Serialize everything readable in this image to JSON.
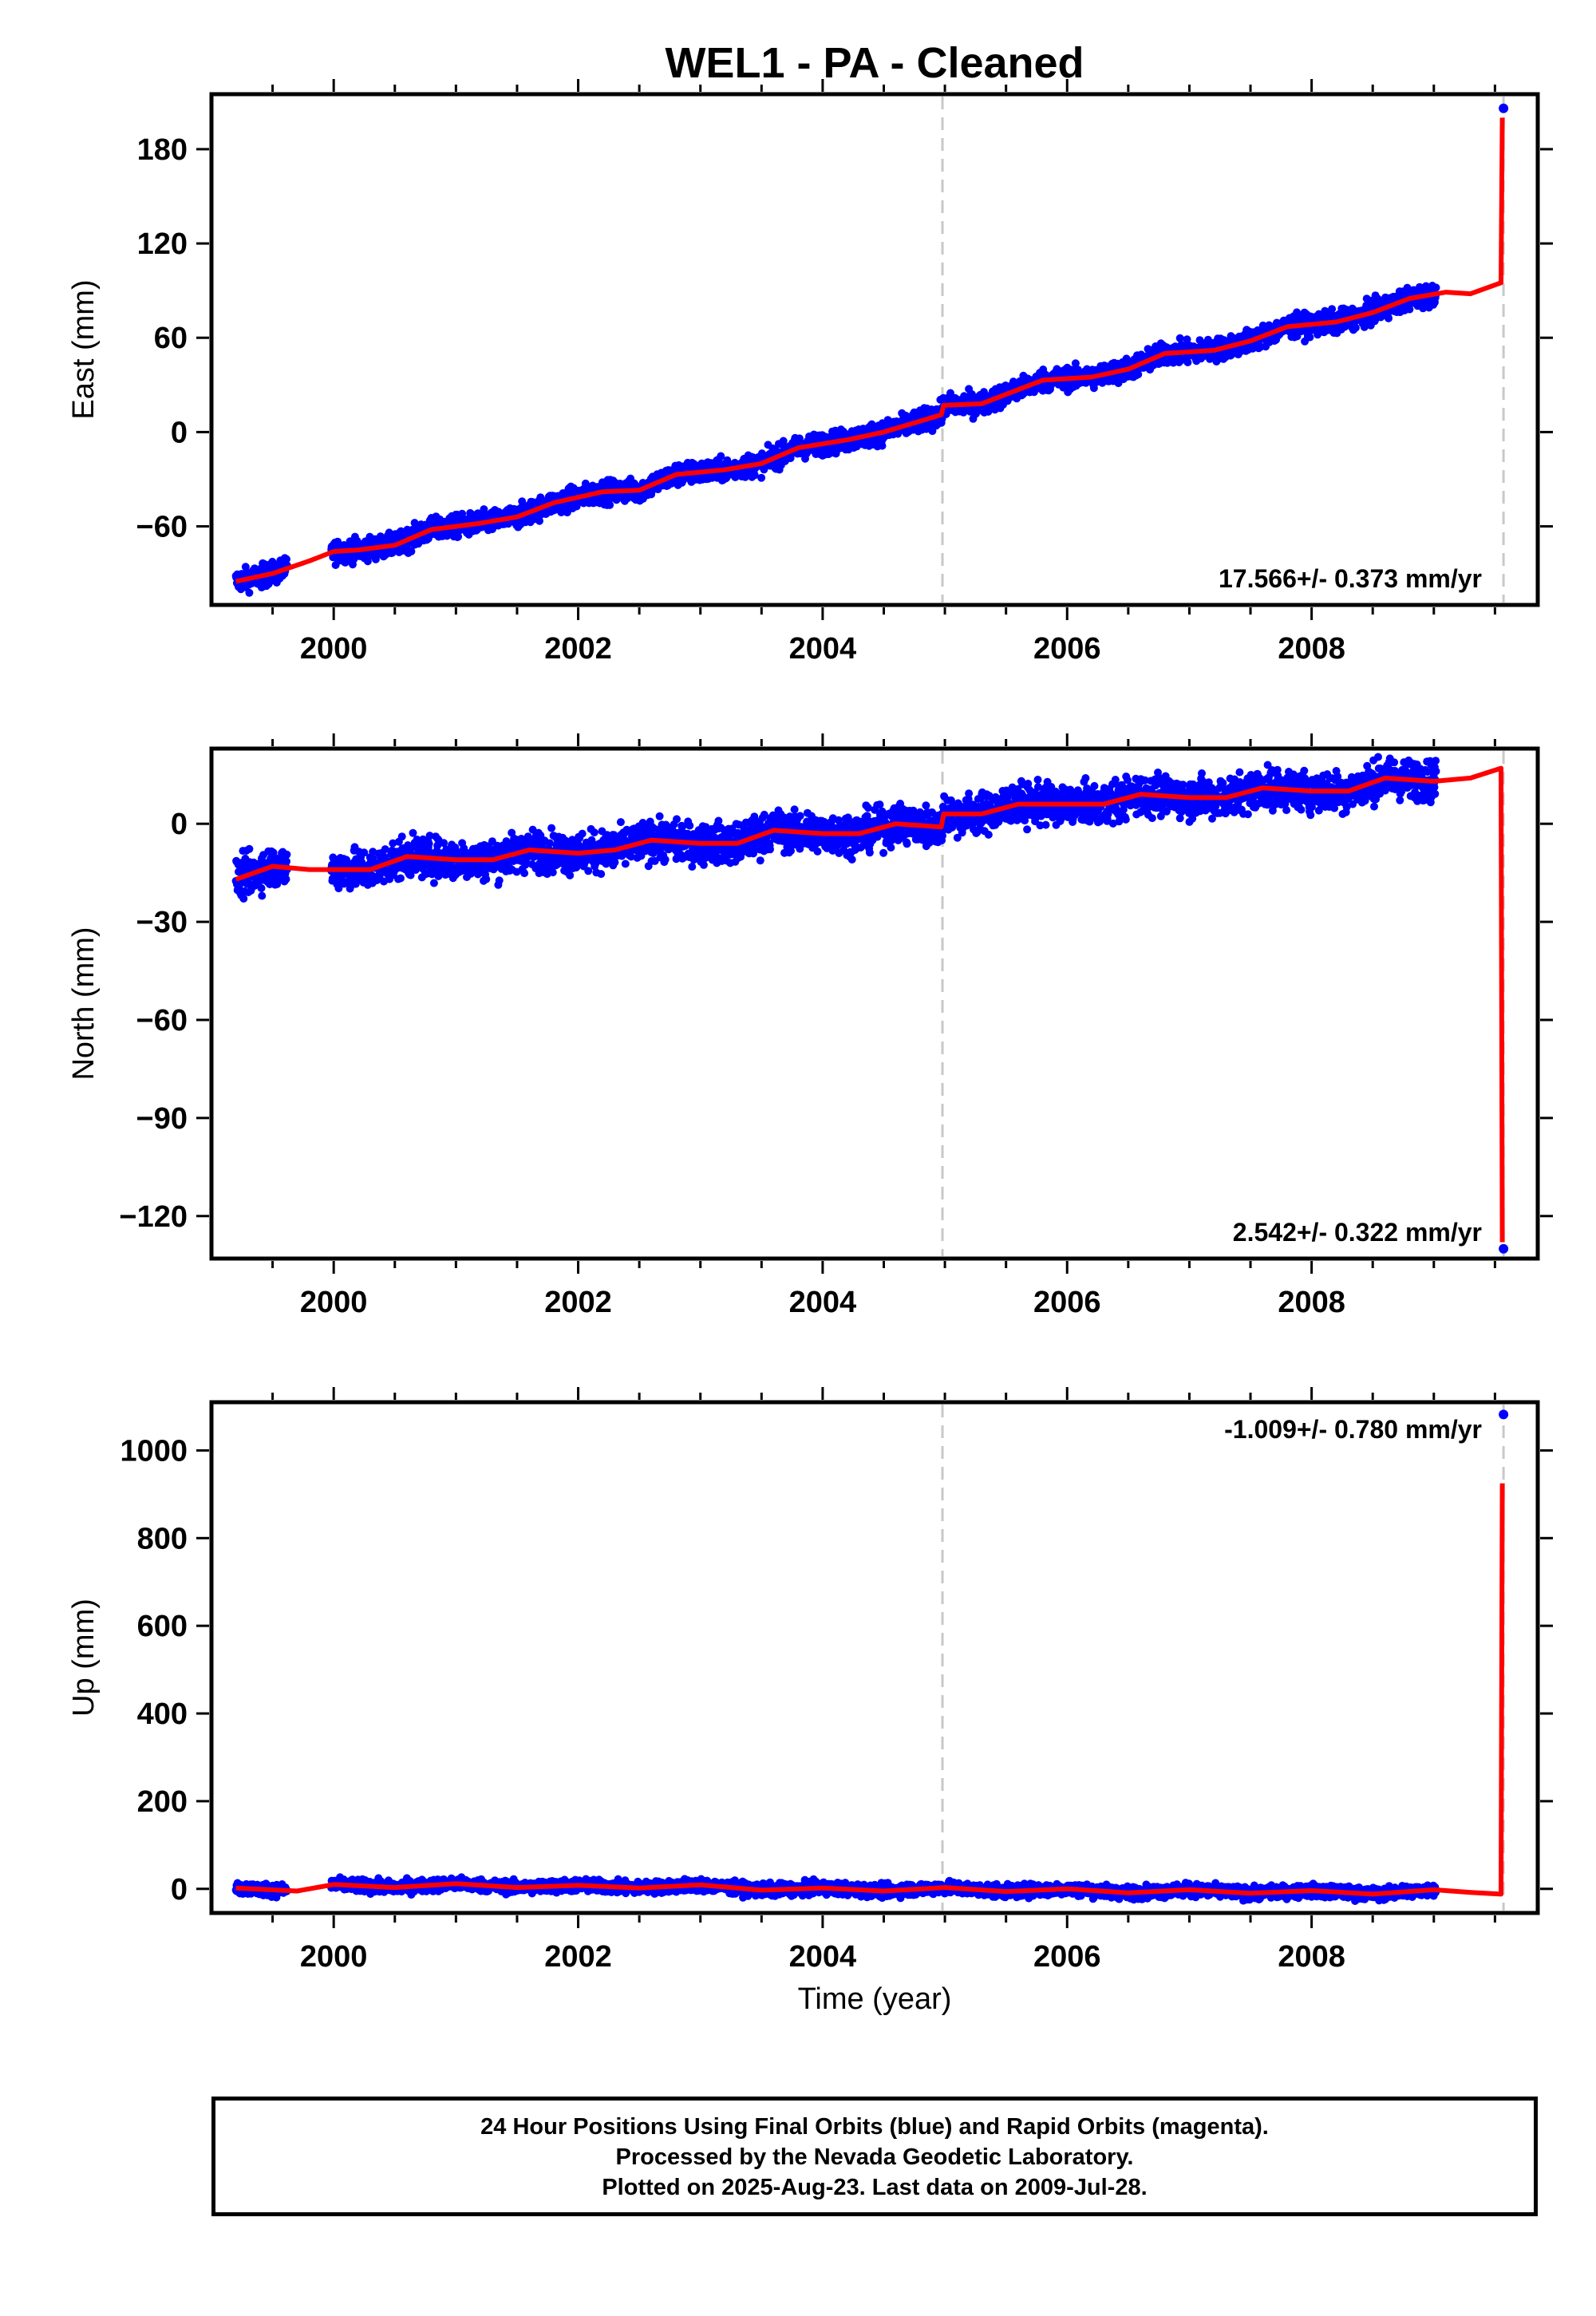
{
  "title": "WEL1  - PA - Cleaned",
  "xlabel": "Time (year)",
  "footer": {
    "line1": "24 Hour Positions Using Final Orbits (blue) and Rapid Orbits (magenta).",
    "line2": "Processed by the Nevada Geodetic Laboratory.",
    "line3": "Plotted on 2025-Aug-23. Last data on 2009-Jul-28."
  },
  "colors": {
    "final_orbits": "#0000ff",
    "model": "#ff0000",
    "event_line": "#c8c8c8"
  },
  "chart_data": [
    {
      "type": "scatter",
      "name": "east",
      "ylabel": "East (mm)",
      "rate_label": "17.566+/- 0.373 mm/yr",
      "xlim": [
        1999.0,
        2009.85
      ],
      "ylim": [
        -110,
        215
      ],
      "yticks": [
        -60,
        0,
        60,
        120,
        180
      ],
      "xticks": [
        2000,
        2002,
        2004,
        2006,
        2008
      ],
      "event_lines": [
        2004.98,
        2009.57
      ],
      "data_span": [
        1999.2,
        2009.02
      ],
      "scatter_sigma": 3.5,
      "outliers": [
        {
          "x": 2009.57,
          "y": 206
        }
      ],
      "model": [
        {
          "x": 1999.2,
          "y": -95
        },
        {
          "x": 1999.5,
          "y": -90
        },
        {
          "x": 1999.8,
          "y": -82
        },
        {
          "x": 2000.0,
          "y": -76
        },
        {
          "x": 2000.2,
          "y": -75
        },
        {
          "x": 2000.5,
          "y": -72
        },
        {
          "x": 2000.8,
          "y": -62
        },
        {
          "x": 2001.2,
          "y": -58
        },
        {
          "x": 2001.5,
          "y": -54
        },
        {
          "x": 2001.8,
          "y": -45
        },
        {
          "x": 2002.2,
          "y": -38
        },
        {
          "x": 2002.5,
          "y": -37
        },
        {
          "x": 2002.8,
          "y": -27
        },
        {
          "x": 2003.2,
          "y": -24
        },
        {
          "x": 2003.5,
          "y": -20
        },
        {
          "x": 2003.8,
          "y": -10
        },
        {
          "x": 2004.2,
          "y": -5
        },
        {
          "x": 2004.5,
          "y": 0
        },
        {
          "x": 2004.97,
          "y": 11
        },
        {
          "x": 2004.99,
          "y": 17
        },
        {
          "x": 2005.3,
          "y": 18
        },
        {
          "x": 2005.5,
          "y": 24
        },
        {
          "x": 2005.8,
          "y": 33
        },
        {
          "x": 2006.2,
          "y": 35
        },
        {
          "x": 2006.5,
          "y": 40
        },
        {
          "x": 2006.8,
          "y": 50
        },
        {
          "x": 2007.2,
          "y": 52
        },
        {
          "x": 2007.5,
          "y": 58
        },
        {
          "x": 2007.8,
          "y": 67
        },
        {
          "x": 2008.2,
          "y": 70
        },
        {
          "x": 2008.5,
          "y": 76
        },
        {
          "x": 2008.8,
          "y": 85
        },
        {
          "x": 2009.1,
          "y": 89
        },
        {
          "x": 2009.3,
          "y": 88
        },
        {
          "x": 2009.55,
          "y": 95
        },
        {
          "x": 2009.56,
          "y": 200
        }
      ]
    },
    {
      "type": "scatter",
      "name": "north",
      "ylabel": "North (mm)",
      "rate_label": "2.542+/- 0.322 mm/yr",
      "xlim": [
        1999.0,
        2009.85
      ],
      "ylim": [
        -133,
        23
      ],
      "yticks": [
        -120,
        -90,
        -60,
        -30,
        0
      ],
      "xticks": [
        2000,
        2002,
        2004,
        2006,
        2008
      ],
      "event_lines": [
        2004.98,
        2009.57
      ],
      "data_span": [
        1999.2,
        2009.02
      ],
      "scatter_sigma": 3.0,
      "outliers": [
        {
          "x": 2009.57,
          "y": -130
        }
      ],
      "model": [
        {
          "x": 1999.2,
          "y": -17
        },
        {
          "x": 1999.5,
          "y": -13
        },
        {
          "x": 1999.8,
          "y": -14
        },
        {
          "x": 2000.0,
          "y": -14
        },
        {
          "x": 2000.3,
          "y": -14
        },
        {
          "x": 2000.6,
          "y": -10
        },
        {
          "x": 2001.0,
          "y": -11
        },
        {
          "x": 2001.3,
          "y": -11
        },
        {
          "x": 2001.6,
          "y": -8
        },
        {
          "x": 2002.0,
          "y": -9
        },
        {
          "x": 2002.3,
          "y": -8
        },
        {
          "x": 2002.6,
          "y": -5
        },
        {
          "x": 2003.0,
          "y": -6
        },
        {
          "x": 2003.3,
          "y": -6
        },
        {
          "x": 2003.6,
          "y": -2
        },
        {
          "x": 2004.0,
          "y": -3
        },
        {
          "x": 2004.3,
          "y": -3
        },
        {
          "x": 2004.6,
          "y": 0
        },
        {
          "x": 2004.97,
          "y": -1
        },
        {
          "x": 2004.99,
          "y": 3
        },
        {
          "x": 2005.3,
          "y": 3
        },
        {
          "x": 2005.6,
          "y": 6
        },
        {
          "x": 2006.0,
          "y": 6
        },
        {
          "x": 2006.3,
          "y": 6
        },
        {
          "x": 2006.6,
          "y": 9
        },
        {
          "x": 2007.0,
          "y": 8
        },
        {
          "x": 2007.3,
          "y": 8
        },
        {
          "x": 2007.6,
          "y": 11
        },
        {
          "x": 2008.0,
          "y": 10
        },
        {
          "x": 2008.3,
          "y": 10
        },
        {
          "x": 2008.6,
          "y": 14
        },
        {
          "x": 2009.0,
          "y": 13
        },
        {
          "x": 2009.3,
          "y": 14
        },
        {
          "x": 2009.55,
          "y": 17
        },
        {
          "x": 2009.56,
          "y": -128
        }
      ]
    },
    {
      "type": "scatter",
      "name": "up",
      "ylabel": "Up (mm)",
      "rate_label": "-1.009+/- 0.780 mm/yr",
      "xlim": [
        1999.0,
        2009.85
      ],
      "ylim": [
        -55,
        1110
      ],
      "yticks": [
        0,
        200,
        400,
        600,
        800,
        1000
      ],
      "xticks": [
        2000,
        2002,
        2004,
        2006,
        2008
      ],
      "event_lines": [
        2004.98,
        2009.57
      ],
      "data_span": [
        1999.2,
        2009.02
      ],
      "scatter_sigma": 7,
      "outliers": [
        {
          "x": 2009.57,
          "y": 1082
        }
      ],
      "model": [
        {
          "x": 1999.2,
          "y": 2
        },
        {
          "x": 1999.7,
          "y": -5
        },
        {
          "x": 2000.0,
          "y": 10
        },
        {
          "x": 2000.5,
          "y": 3
        },
        {
          "x": 2001.0,
          "y": 12
        },
        {
          "x": 2001.5,
          "y": 3
        },
        {
          "x": 2002.0,
          "y": 8
        },
        {
          "x": 2002.5,
          "y": 2
        },
        {
          "x": 2003.0,
          "y": 9
        },
        {
          "x": 2003.5,
          "y": -3
        },
        {
          "x": 2004.0,
          "y": 2
        },
        {
          "x": 2004.5,
          "y": -5
        },
        {
          "x": 2005.0,
          "y": 3
        },
        {
          "x": 2005.5,
          "y": -6
        },
        {
          "x": 2006.0,
          "y": 0
        },
        {
          "x": 2006.5,
          "y": -9
        },
        {
          "x": 2007.0,
          "y": -2
        },
        {
          "x": 2007.5,
          "y": -10
        },
        {
          "x": 2008.0,
          "y": -4
        },
        {
          "x": 2008.5,
          "y": -12
        },
        {
          "x": 2009.0,
          "y": -2
        },
        {
          "x": 2009.3,
          "y": -8
        },
        {
          "x": 2009.55,
          "y": -12
        },
        {
          "x": 2009.56,
          "y": 925
        }
      ]
    }
  ]
}
